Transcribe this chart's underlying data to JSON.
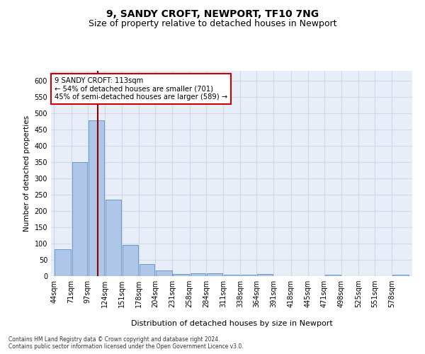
{
  "title": "9, SANDY CROFT, NEWPORT, TF10 7NG",
  "subtitle": "Size of property relative to detached houses in Newport",
  "xlabel": "Distribution of detached houses by size in Newport",
  "ylabel": "Number of detached properties",
  "bin_labels": [
    "44sqm",
    "71sqm",
    "97sqm",
    "124sqm",
    "151sqm",
    "178sqm",
    "204sqm",
    "231sqm",
    "258sqm",
    "284sqm",
    "311sqm",
    "338sqm",
    "364sqm",
    "391sqm",
    "418sqm",
    "445sqm",
    "471sqm",
    "498sqm",
    "525sqm",
    "551sqm",
    "578sqm"
  ],
  "bin_edges": [
    44,
    71,
    97,
    124,
    151,
    178,
    204,
    231,
    258,
    284,
    311,
    338,
    364,
    391,
    418,
    445,
    471,
    498,
    525,
    551,
    578,
    605
  ],
  "bar_values": [
    83,
    350,
    478,
    235,
    95,
    37,
    18,
    7,
    9,
    9,
    5,
    5,
    6,
    0,
    0,
    0,
    5,
    0,
    0,
    0,
    5
  ],
  "bar_color": "#aec6e8",
  "bar_edge_color": "#5a8fc2",
  "property_size": 113,
  "vline_color": "#8b0000",
  "annotation_line1": "9 SANDY CROFT: 113sqm",
  "annotation_line2": "← 54% of detached houses are smaller (701)",
  "annotation_line3": "45% of semi-detached houses are larger (589) →",
  "annotation_box_color": "#ffffff",
  "annotation_box_edge": "#cc0000",
  "ylim": [
    0,
    630
  ],
  "yticks": [
    0,
    50,
    100,
    150,
    200,
    250,
    300,
    350,
    400,
    450,
    500,
    550,
    600
  ],
  "grid_color": "#d0d8e8",
  "bg_color": "#e8eef8",
  "footer_line1": "Contains HM Land Registry data © Crown copyright and database right 2024.",
  "footer_line2": "Contains public sector information licensed under the Open Government Licence v3.0.",
  "title_fontsize": 10,
  "subtitle_fontsize": 9,
  "fig_width": 6.0,
  "fig_height": 5.0,
  "dpi": 100
}
